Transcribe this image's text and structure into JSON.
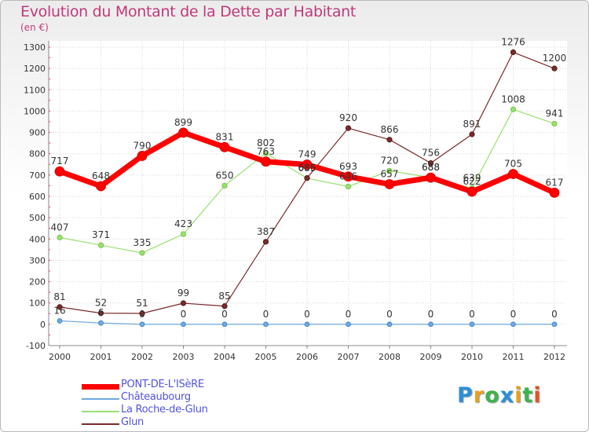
{
  "chart_data": {
    "type": "line",
    "title": "Evolution du Montant de la Dette par Habitant",
    "subtitle": "(en €)",
    "x": [
      "2000",
      "2001",
      "2002",
      "2003",
      "2004",
      "2005",
      "2006",
      "2007",
      "2008",
      "2009",
      "2010",
      "2011",
      "2012"
    ],
    "yticks": [
      "-100",
      "0",
      "100",
      "200",
      "300",
      "400",
      "500",
      "600",
      "700",
      "800",
      "900",
      "1000",
      "1100",
      "1200",
      "1300"
    ],
    "ylim": [
      -100,
      1300
    ],
    "grid": true,
    "legend_placement": "bottom-left",
    "series": [
      {
        "name": "PONT-DE-L'ISèRE",
        "color": "#ff0000",
        "values": [
          717,
          648,
          790,
          899,
          831,
          763,
          749,
          693,
          657,
          688,
          622,
          705,
          617
        ],
        "labels": [
          "717",
          "648",
          "790",
          "899",
          "831",
          "763",
          "749",
          "693",
          "657",
          "688",
          "622",
          "705",
          "617"
        ]
      },
      {
        "name": "Châteaubourg",
        "color": "#6fa8dc",
        "values": [
          16,
          6,
          0,
          0,
          0,
          0,
          0,
          0,
          0,
          0,
          0,
          0,
          0
        ],
        "labels": [
          "16",
          "6",
          "0",
          "0",
          "0",
          "0",
          "0",
          "0",
          "0",
          "0",
          "0",
          "0",
          "0"
        ]
      },
      {
        "name": "La Roche-de-Glun",
        "color": "#99e070",
        "values": [
          407,
          371,
          335,
          423,
          650,
          802,
          685,
          646,
          720,
          688,
          639,
          1008,
          941
        ],
        "labels": [
          "407",
          "371",
          "335",
          "423",
          "650",
          "802",
          "685",
          "646",
          "720",
          "688",
          "639",
          "1008",
          "941"
        ]
      },
      {
        "name": "Glun",
        "color": "#7a2a2a",
        "values": [
          81,
          52,
          51,
          99,
          85,
          387,
          686,
          920,
          866,
          756,
          891,
          1276,
          1200
        ],
        "labels": [
          "81",
          "52",
          "51",
          "99",
          "85",
          "387",
          "686",
          "920",
          "866",
          "756",
          "891",
          "1276",
          "1200"
        ]
      }
    ]
  },
  "brand": {
    "letters": [
      "P",
      "r",
      "o",
      "x",
      "i",
      "t",
      "i"
    ],
    "colors": [
      "#2a8fd8",
      "#e8a020",
      "#3cb44b",
      "#2a8fd8",
      "#e8a020",
      "#3cb44b",
      "#e85020"
    ]
  }
}
